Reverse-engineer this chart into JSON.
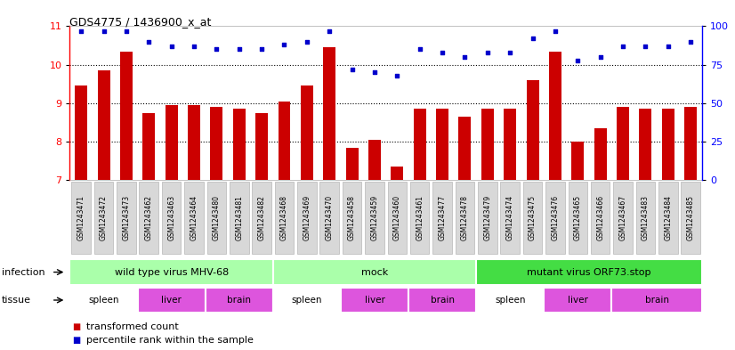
{
  "title": "GDS4775 / 1436900_x_at",
  "samples": [
    "GSM1243471",
    "GSM1243472",
    "GSM1243473",
    "GSM1243462",
    "GSM1243463",
    "GSM1243464",
    "GSM1243480",
    "GSM1243481",
    "GSM1243482",
    "GSM1243468",
    "GSM1243469",
    "GSM1243470",
    "GSM1243458",
    "GSM1243459",
    "GSM1243460",
    "GSM1243461",
    "GSM1243477",
    "GSM1243478",
    "GSM1243479",
    "GSM1243474",
    "GSM1243475",
    "GSM1243476",
    "GSM1243465",
    "GSM1243466",
    "GSM1243467",
    "GSM1243483",
    "GSM1243484",
    "GSM1243485"
  ],
  "bar_values": [
    9.45,
    9.85,
    10.35,
    8.75,
    8.95,
    8.95,
    8.9,
    8.85,
    8.75,
    9.05,
    9.45,
    10.45,
    7.85,
    8.05,
    7.35,
    8.85,
    8.85,
    8.65,
    8.85,
    8.85,
    9.6,
    10.35,
    8.0,
    8.35,
    8.9,
    8.85,
    8.85,
    8.9
  ],
  "percentile_values": [
    97,
    97,
    97,
    90,
    87,
    87,
    85,
    85,
    85,
    88,
    90,
    97,
    72,
    70,
    68,
    85,
    83,
    80,
    83,
    83,
    92,
    97,
    78,
    80,
    87,
    87,
    87,
    90
  ],
  "ylim_left": [
    7,
    11
  ],
  "ylim_right": [
    0,
    100
  ],
  "yticks_left": [
    7,
    8,
    9,
    10,
    11
  ],
  "yticks_right": [
    0,
    25,
    50,
    75,
    100
  ],
  "bar_color": "#cc0000",
  "dot_color": "#0000cc",
  "infection_groups": [
    {
      "label": "wild type virus MHV-68",
      "start": 0,
      "end": 8,
      "color": "#aaffaa"
    },
    {
      "label": "mock",
      "start": 9,
      "end": 17,
      "color": "#aaffaa"
    },
    {
      "label": "mutant virus ORF73.stop",
      "start": 18,
      "end": 27,
      "color": "#44dd44"
    }
  ],
  "tissue_groups": [
    {
      "label": "spleen",
      "start": 0,
      "end": 2,
      "color": "#ffffff"
    },
    {
      "label": "liver",
      "start": 3,
      "end": 5,
      "color": "#dd55dd"
    },
    {
      "label": "brain",
      "start": 6,
      "end": 8,
      "color": "#dd55dd"
    },
    {
      "label": "spleen",
      "start": 9,
      "end": 11,
      "color": "#ffffff"
    },
    {
      "label": "liver",
      "start": 12,
      "end": 14,
      "color": "#dd55dd"
    },
    {
      "label": "brain",
      "start": 15,
      "end": 17,
      "color": "#dd55dd"
    },
    {
      "label": "spleen",
      "start": 18,
      "end": 20,
      "color": "#ffffff"
    },
    {
      "label": "liver",
      "start": 21,
      "end": 23,
      "color": "#dd55dd"
    },
    {
      "label": "brain",
      "start": 24,
      "end": 27,
      "color": "#dd55dd"
    }
  ],
  "legend_items": [
    {
      "label": "transformed count",
      "color": "#cc0000"
    },
    {
      "label": "percentile rank within the sample",
      "color": "#0000cc"
    }
  ]
}
